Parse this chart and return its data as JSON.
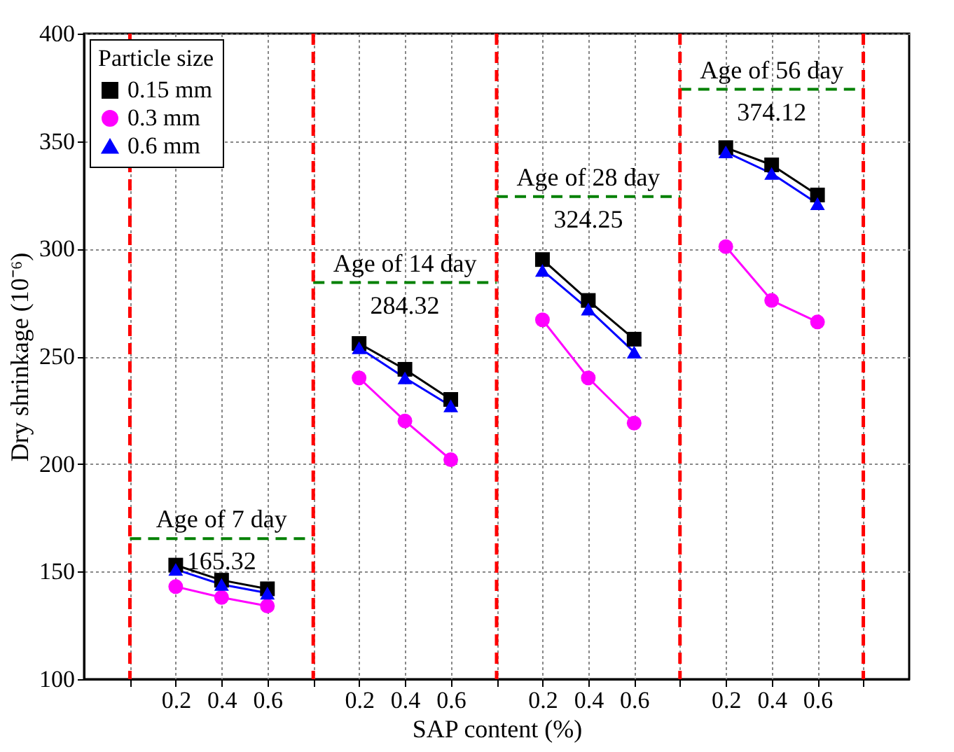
{
  "chart_data": {
    "type": "line",
    "xlabel": "SAP content (%)",
    "ylabel": "Dry shrinkage (10⁻⁶)",
    "legend_title": "Particle size",
    "categories": [
      null,
      "0.2",
      "0.4",
      "0.6",
      null,
      "0.2",
      "0.4",
      "0.6",
      null,
      "0.2",
      "0.4",
      "0.6",
      null,
      "0.2",
      "0.4",
      "0.6",
      null
    ],
    "series": [
      {
        "name": "0.15 mm",
        "color": "#000000",
        "marker": "square",
        "values": [
          null,
          153,
          146,
          142,
          null,
          256,
          244,
          230,
          null,
          295,
          276,
          258,
          null,
          347,
          339,
          325,
          null
        ]
      },
      {
        "name": "0.3 mm",
        "color": "#ff00ff",
        "marker": "circle",
        "values": [
          null,
          143,
          138,
          134,
          null,
          240,
          220,
          202,
          null,
          267,
          240,
          219,
          null,
          301,
          276,
          266,
          null
        ]
      },
      {
        "name": "0.6 mm",
        "color": "#0000ff",
        "marker": "triangle",
        "values": [
          null,
          151,
          144,
          140,
          null,
          254,
          240,
          227,
          null,
          290,
          272,
          252,
          null,
          345,
          335,
          321,
          null
        ]
      },
      {
        "name": "Age of 7 day",
        "color": "#008000",
        "line_style": "dashed",
        "marker": "none",
        "values": [
          165.32,
          165.32,
          165.32,
          165.32,
          165.32,
          null,
          null,
          null,
          null,
          null,
          null,
          null,
          null,
          null,
          null,
          null,
          null
        ],
        "value_labels": [
          null,
          null,
          "165.32",
          null,
          null,
          null,
          null,
          null,
          null,
          null,
          null,
          null,
          null,
          null,
          null,
          null,
          null
        ]
      },
      {
        "name": "Age of 14 day",
        "color": "#008000",
        "line_style": "dashed",
        "marker": "none",
        "values": [
          null,
          null,
          null,
          null,
          284.32,
          284.32,
          284.32,
          284.32,
          284.32,
          null,
          null,
          null,
          null,
          null,
          null,
          null,
          null
        ],
        "value_labels": [
          null,
          null,
          null,
          null,
          null,
          null,
          "284.32",
          null,
          null,
          null,
          null,
          null,
          null,
          null,
          null,
          null,
          null
        ]
      },
      {
        "name": "Age of 28 day",
        "color": "#008000",
        "line_style": "dashed",
        "marker": "none",
        "values": [
          null,
          null,
          null,
          null,
          null,
          null,
          null,
          null,
          324.25,
          324.25,
          324.25,
          324.25,
          324.25,
          null,
          null,
          null,
          null
        ],
        "value_labels": [
          null,
          null,
          null,
          null,
          null,
          null,
          null,
          null,
          null,
          null,
          "324.25",
          null,
          null,
          null,
          null,
          null,
          null
        ]
      },
      {
        "name": "Age of 56 day",
        "color": "#008000",
        "line_style": "dashed",
        "marker": "none",
        "values": [
          null,
          null,
          null,
          null,
          null,
          null,
          null,
          null,
          null,
          null,
          null,
          null,
          374.12,
          374.12,
          374.12,
          374.12,
          374.12
        ],
        "value_labels": [
          null,
          null,
          null,
          null,
          null,
          null,
          null,
          null,
          null,
          null,
          null,
          null,
          null,
          null,
          "374.12",
          null,
          null
        ]
      }
    ],
    "ref_lines": [
      {
        "axis": "x",
        "color": "#ff0000",
        "line_style": "dashed"
      },
      {
        "axis": "x",
        "color": "#ff0000",
        "line_style": "dashed"
      },
      {
        "axis": "x",
        "color": "#ff0000",
        "line_style": "dashed"
      },
      {
        "axis": "x",
        "color": "#ff0000",
        "line_style": "dashed"
      },
      {
        "axis": "x",
        "color": "#ff0000",
        "line_style": "dashed"
      }
    ],
    "ylim": [
      100,
      400
    ],
    "yticks": [
      100,
      150,
      200,
      250,
      300,
      350,
      400
    ],
    "grid": true,
    "legend": "top left"
  }
}
